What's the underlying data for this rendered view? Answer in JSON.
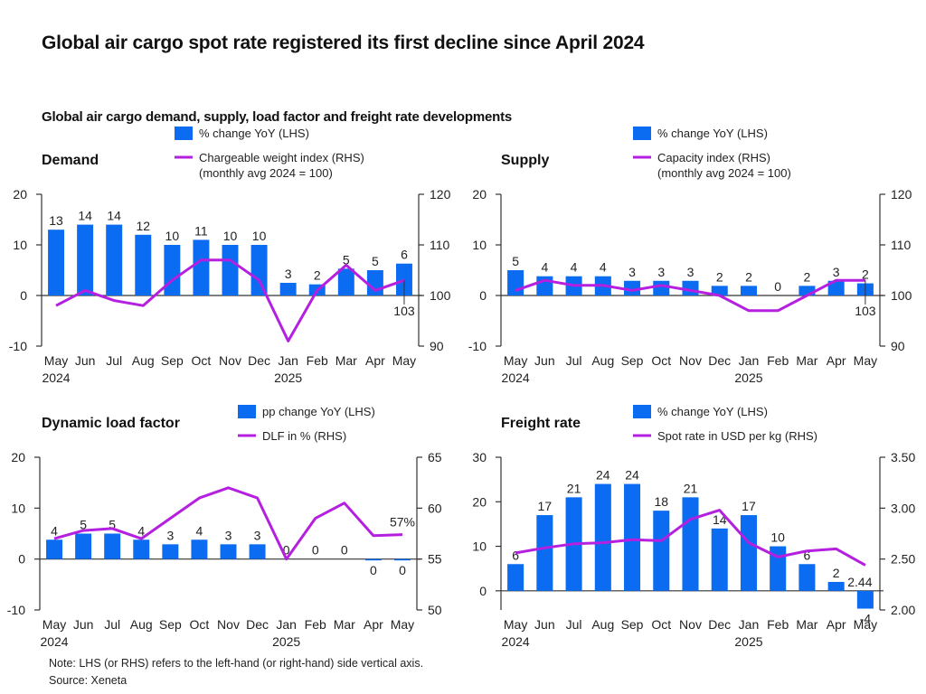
{
  "title": "Global air cargo spot rate registered its first decline since April 2024",
  "subtitle": "Global air cargo demand, supply, load factor and freight rate developments",
  "note": "Note: LHS (or RHS) refers to the left-hand (or right-hand) side vertical axis.",
  "source": "Source: Xeneta",
  "colors": {
    "bar": "#0b6cf2",
    "line": "#b51fe0",
    "axis": "#333333"
  },
  "chart_data": [
    {
      "id": "demand",
      "type": "bar+line",
      "title": "Demand",
      "categories": [
        "May",
        "Jun",
        "Jul",
        "Aug",
        "Sep",
        "Oct",
        "Nov",
        "Dec",
        "Jan",
        "Feb",
        "Mar",
        "Apr",
        "May"
      ],
      "year_labels": [
        {
          "index": 0,
          "label": "2024"
        },
        {
          "index": 8,
          "label": "2025"
        }
      ],
      "legend": [
        "% change YoY (LHS)",
        "Chargeable weight index (RHS)",
        "(monthly avg 2024 = 100)"
      ],
      "left_axis": {
        "ticks": [
          "20",
          "10",
          "0",
          "-10"
        ],
        "ylim": [
          -10,
          20
        ]
      },
      "right_axis": {
        "ticks": [
          "120",
          "110",
          "100",
          "90"
        ],
        "ylim": [
          90,
          120
        ]
      },
      "series": [
        {
          "name": "% change YoY (LHS)",
          "type": "bar",
          "axis": "left",
          "values": [
            13,
            14,
            14,
            12,
            10,
            11,
            10,
            10,
            2.5,
            2.2,
            5.3,
            5,
            6.3
          ],
          "labels": [
            "13",
            "14",
            "14",
            "12",
            "10",
            "11",
            "10",
            "10",
            "3",
            "2",
            "5",
            "5",
            "6"
          ]
        },
        {
          "name": "Chargeable weight index (RHS)",
          "type": "line",
          "axis": "right",
          "values": [
            98,
            101,
            99,
            98,
            103,
            107,
            107,
            103,
            91,
            101,
            106,
            101,
            103
          ],
          "end_label": "103"
        }
      ]
    },
    {
      "id": "supply",
      "type": "bar+line",
      "title": "Supply",
      "categories": [
        "May",
        "Jun",
        "Jul",
        "Aug",
        "Sep",
        "Oct",
        "Nov",
        "Dec",
        "Jan",
        "Feb",
        "Mar",
        "Apr",
        "May"
      ],
      "year_labels": [
        {
          "index": 0,
          "label": "2024"
        },
        {
          "index": 8,
          "label": "2025"
        }
      ],
      "legend": [
        "% change YoY (LHS)",
        "Capacity index (RHS)",
        "(monthly avg 2024 = 100)"
      ],
      "left_axis": {
        "ticks": [
          "20",
          "10",
          "0",
          "-10"
        ],
        "ylim": [
          -10,
          20
        ]
      },
      "right_axis": {
        "ticks": [
          "120",
          "110",
          "100",
          "90"
        ],
        "ylim": [
          90,
          120
        ]
      },
      "series": [
        {
          "name": "% change YoY (LHS)",
          "type": "bar",
          "axis": "left",
          "values": [
            5,
            3.8,
            3.8,
            3.8,
            2.9,
            2.9,
            2.9,
            1.9,
            1.9,
            0,
            1.9,
            2.9,
            2.4
          ],
          "labels": [
            "5",
            "4",
            "4",
            "4",
            "3",
            "3",
            "3",
            "2",
            "2",
            "0",
            "2",
            "3",
            "2"
          ]
        },
        {
          "name": "Capacity index (RHS)",
          "type": "line",
          "axis": "right",
          "values": [
            101,
            103,
            102,
            102,
            101,
            102,
            101,
            100,
            97,
            97,
            100,
            103,
            103
          ],
          "end_label": "103"
        }
      ]
    },
    {
      "id": "load-factor",
      "type": "bar+line",
      "title": "Dynamic load factor",
      "categories": [
        "May",
        "Jun",
        "Jul",
        "Aug",
        "Sep",
        "Oct",
        "Nov",
        "Dec",
        "Jan",
        "Feb",
        "Mar",
        "Apr",
        "May"
      ],
      "year_labels": [
        {
          "index": 0,
          "label": "2024"
        },
        {
          "index": 8,
          "label": "2025"
        }
      ],
      "legend": [
        "pp change YoY (LHS)",
        "DLF in % (RHS)"
      ],
      "left_axis": {
        "ticks": [
          "20",
          "10",
          "0",
          "-10"
        ],
        "ylim": [
          -10,
          20
        ]
      },
      "right_axis": {
        "ticks": [
          "65",
          "60",
          "55",
          "50"
        ],
        "ylim": [
          50,
          65
        ]
      },
      "series": [
        {
          "name": "pp change YoY (LHS)",
          "type": "bar",
          "axis": "left",
          "values": [
            3.8,
            5,
            5,
            3.8,
            2.9,
            3.8,
            2.9,
            2.9,
            0,
            0,
            0,
            -0.2,
            -0.2
          ],
          "labels": [
            "4",
            "5",
            "5",
            "4",
            "3",
            "4",
            "3",
            "3",
            "0",
            "0",
            "0",
            "0",
            "0"
          ]
        },
        {
          "name": "DLF in % (RHS)",
          "type": "line",
          "axis": "right",
          "values": [
            57,
            57.8,
            58,
            57,
            59,
            61,
            62,
            61,
            55,
            59,
            60.5,
            57.3,
            57.4
          ],
          "end_label": "57%"
        }
      ]
    },
    {
      "id": "freight-rate",
      "type": "bar+line",
      "title": "Freight rate",
      "categories": [
        "May",
        "Jun",
        "Jul",
        "Aug",
        "Sep",
        "Oct",
        "Nov",
        "Dec",
        "Jan",
        "Feb",
        "Mar",
        "Apr",
        "May"
      ],
      "year_labels": [
        {
          "index": 0,
          "label": "2024"
        },
        {
          "index": 8,
          "label": "2025"
        }
      ],
      "legend": [
        "% change YoY (LHS)",
        "Spot rate in USD per kg (RHS)"
      ],
      "left_axis": {
        "ticks": [
          "30",
          "20",
          "10",
          "0"
        ],
        "ylim": [
          -4.3,
          30
        ]
      },
      "right_axis": {
        "ticks": [
          "3.50",
          "3.00",
          "2.50",
          "2.00"
        ],
        "ylim": [
          2.0,
          3.5
        ]
      },
      "series": [
        {
          "name": "% change YoY (LHS)",
          "type": "bar",
          "axis": "left",
          "values": [
            6,
            17,
            21,
            24,
            24,
            18,
            21,
            14,
            17,
            10,
            6,
            2,
            -4
          ],
          "labels": [
            "6",
            "17",
            "21",
            "24",
            "24",
            "18",
            "21",
            "14",
            "17",
            "10",
            "6",
            "2",
            "-4"
          ]
        },
        {
          "name": "Spot rate in USD per kg (RHS)",
          "type": "line",
          "axis": "right",
          "values": [
            2.56,
            2.61,
            2.65,
            2.66,
            2.69,
            2.68,
            2.89,
            2.98,
            2.66,
            2.52,
            2.58,
            2.6,
            2.44
          ],
          "end_label": "2.44"
        }
      ]
    }
  ]
}
